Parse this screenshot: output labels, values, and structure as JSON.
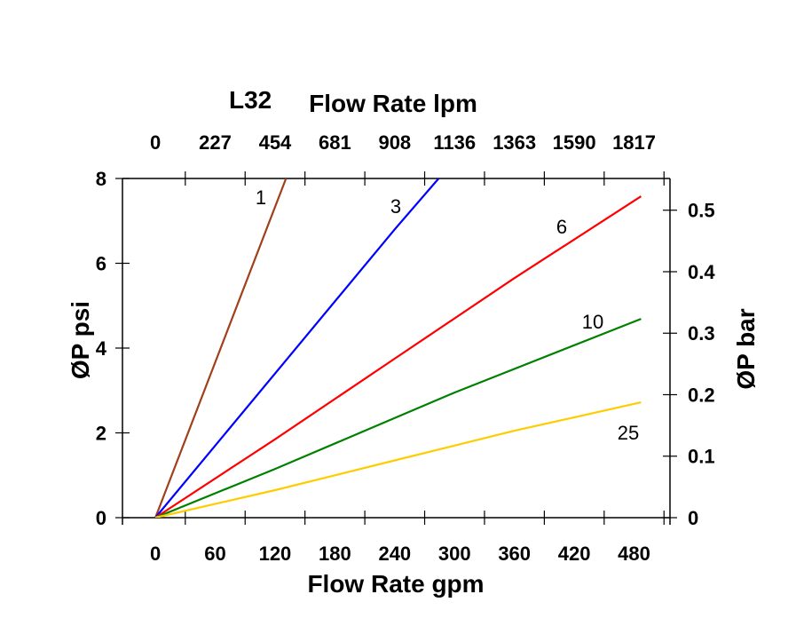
{
  "chart_data": {
    "type": "line",
    "title_fragment": "L32",
    "xlabel": "Flow Rate gpm",
    "x2label": "Flow Rate lpm",
    "ylabel": "ØP psi",
    "y2label": "ØP bar",
    "xlim": [
      -33,
      516
    ],
    "ylim": [
      0,
      8
    ],
    "y2lim": [
      0,
      0.5516
    ],
    "x_ticks": [
      "0",
      "60",
      "120",
      "180",
      "240",
      "300",
      "360",
      "420",
      "480"
    ],
    "x2_ticks": [
      "0",
      "227",
      "454",
      "681",
      "908",
      "1136",
      "1363",
      "1590",
      "1817"
    ],
    "y_ticks": [
      "0",
      "2",
      "4",
      "6",
      "8"
    ],
    "y2_ticks": [
      "0",
      "0.1",
      "0.2",
      "0.3",
      "0.4",
      "0.5"
    ],
    "grid": false,
    "series": [
      {
        "name": "1",
        "color": "#a0401a",
        "points": [
          [
            0,
            0
          ],
          [
            131,
            8
          ]
        ]
      },
      {
        "name": "3",
        "color": "#0000ff",
        "points": [
          [
            0,
            0
          ],
          [
            240,
            6.8
          ],
          [
            284,
            8
          ]
        ]
      },
      {
        "name": "6",
        "color": "#ff0000",
        "points": [
          [
            0,
            0
          ],
          [
            120,
            1.85
          ],
          [
            240,
            3.75
          ],
          [
            360,
            5.65
          ],
          [
            487,
            7.58
          ]
        ]
      },
      {
        "name": "10",
        "color": "#008000",
        "points": [
          [
            0,
            0
          ],
          [
            120,
            1.15
          ],
          [
            240,
            2.35
          ],
          [
            300,
            2.95
          ],
          [
            487,
            4.69
          ]
        ]
      },
      {
        "name": "25",
        "color": "#ffcc00",
        "points": [
          [
            0,
            0
          ],
          [
            120,
            0.65
          ],
          [
            240,
            1.35
          ],
          [
            360,
            2.05
          ],
          [
            487,
            2.72
          ]
        ]
      }
    ]
  }
}
